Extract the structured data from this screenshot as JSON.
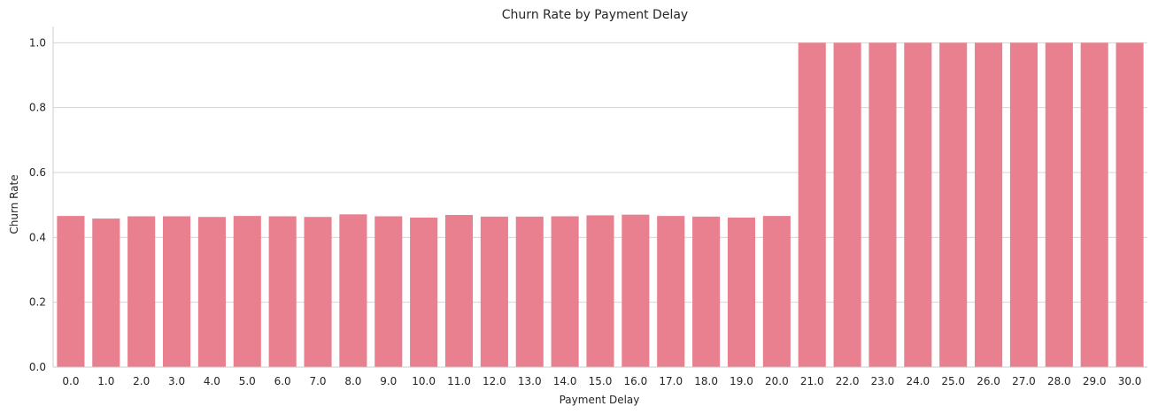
{
  "chart_data": {
    "type": "bar",
    "title": "Churn Rate by Payment Delay",
    "xlabel": "Payment Delay",
    "ylabel": "Churn Rate",
    "categories": [
      "0.0",
      "1.0",
      "2.0",
      "3.0",
      "4.0",
      "5.0",
      "6.0",
      "7.0",
      "8.0",
      "9.0",
      "10.0",
      "11.0",
      "12.0",
      "13.0",
      "14.0",
      "15.0",
      "16.0",
      "17.0",
      "18.0",
      "19.0",
      "20.0",
      "21.0",
      "22.0",
      "23.0",
      "24.0",
      "25.0",
      "26.0",
      "27.0",
      "28.0",
      "29.0",
      "30.0"
    ],
    "values": [
      0.466,
      0.458,
      0.465,
      0.465,
      0.463,
      0.466,
      0.465,
      0.463,
      0.471,
      0.465,
      0.461,
      0.469,
      0.464,
      0.464,
      0.465,
      0.468,
      0.47,
      0.466,
      0.464,
      0.461,
      0.466,
      1.0,
      1.0,
      1.0,
      1.0,
      1.0,
      1.0,
      1.0,
      1.0,
      1.0,
      1.0
    ],
    "ylim": [
      0,
      1.05
    ],
    "yticks": [
      "0.0",
      "0.2",
      "0.4",
      "0.6",
      "0.8",
      "1.0"
    ],
    "grid": "horizontal",
    "bar_color": "#e8808f",
    "grid_color": "#d4d4d4",
    "axis_color": "#cccccc",
    "text_color": "#262626"
  }
}
